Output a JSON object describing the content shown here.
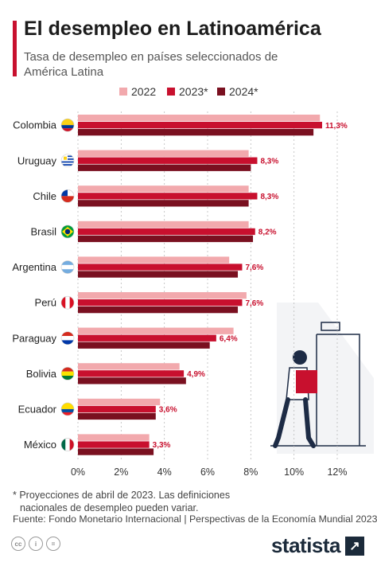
{
  "header": {
    "title": "El desempleo en Latinoamérica",
    "subtitle": "Tasa de desempleo en países seleccionados de América Latina",
    "accent_color": "#c8102e"
  },
  "footer": {
    "note_line1": "* Proyecciones de abril de 2023. Las definiciones",
    "note_line2": "nacionales de desempleo pueden variar.",
    "source": "Fuente: Fondo Monetario Internacional | Perspectivas de la Economía Mundial 2023",
    "brand": "statista",
    "license_icons": [
      "cc-icon",
      "by-icon",
      "nd-icon"
    ]
  },
  "chart_data": {
    "type": "bar",
    "orientation": "horizontal",
    "categories": [
      "Colombia",
      "Uruguay",
      "Chile",
      "Brasil",
      "Argentina",
      "Perú",
      "Paraguay",
      "Bolivia",
      "Ecuador",
      "México"
    ],
    "series": [
      {
        "name": "2022",
        "color": "#f2a9ad",
        "values": [
          11.2,
          7.9,
          7.9,
          7.9,
          7.0,
          7.8,
          7.2,
          4.7,
          3.8,
          3.3
        ]
      },
      {
        "name": "2023*",
        "color": "#c8102e",
        "values": [
          11.3,
          8.3,
          8.3,
          8.2,
          7.6,
          7.6,
          6.4,
          4.9,
          3.6,
          3.3
        ]
      },
      {
        "name": "2024*",
        "color": "#7a1020",
        "values": [
          10.9,
          8.0,
          7.9,
          8.1,
          7.4,
          7.4,
          6.1,
          5.0,
          3.6,
          3.5
        ]
      }
    ],
    "data_labels": [
      "11,3%",
      "8,3%",
      "8,3%",
      "8,2%",
      "7,6%",
      "7,6%",
      "6,4%",
      "4,9%",
      "3,6%",
      "3,3%"
    ],
    "xlim": [
      0,
      12
    ],
    "x_ticks": [
      "0%",
      "2%",
      "4%",
      "6%",
      "8%",
      "10%",
      "12%"
    ],
    "grid": true,
    "legend_position": "top-right",
    "flags": [
      "colombia-flag-icon",
      "uruguay-flag-icon",
      "chile-flag-icon",
      "brazil-flag-icon",
      "argentina-flag-icon",
      "peru-flag-icon",
      "paraguay-flag-icon",
      "bolivia-flag-icon",
      "ecuador-flag-icon",
      "mexico-flag-icon"
    ]
  }
}
